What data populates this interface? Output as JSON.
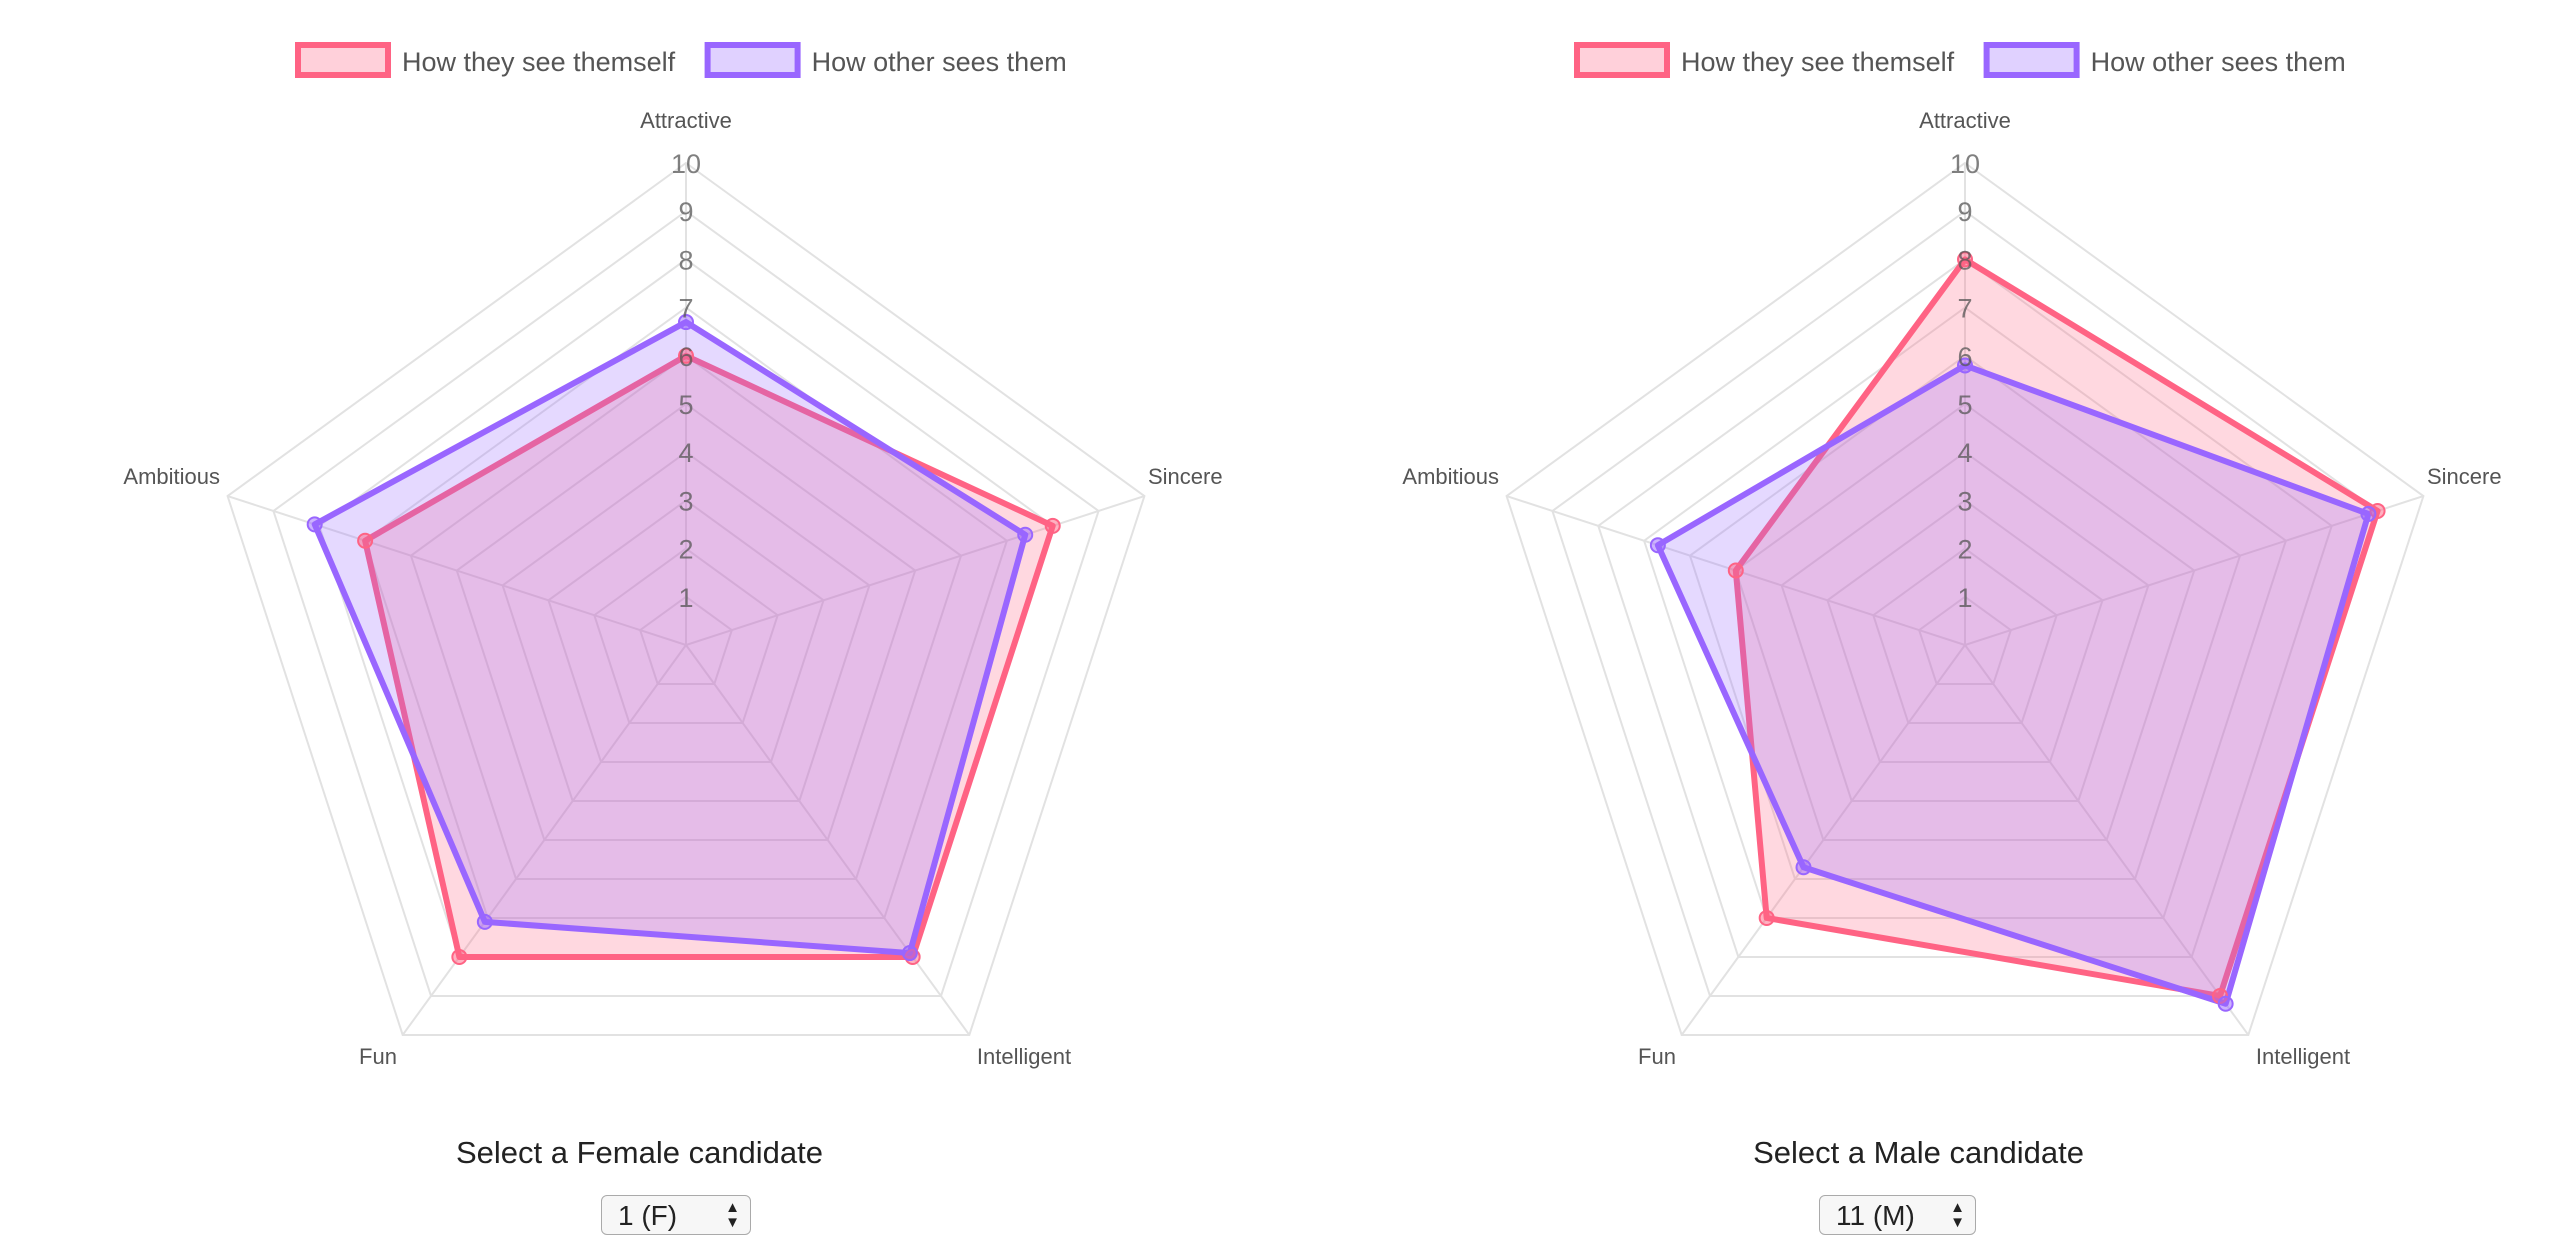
{
  "chart_data": [
    {
      "type": "radar",
      "axes": [
        "Attractive",
        "Sincere",
        "Intelligent",
        "Fun",
        "Ambitious"
      ],
      "ticks": [
        "1",
        "2",
        "3",
        "4",
        "5",
        "6",
        "7",
        "8",
        "9",
        "10"
      ],
      "rlim": [
        0,
        10
      ],
      "legend_position": "top",
      "series": [
        {
          "name": "How they see themself",
          "values": [
            6,
            8,
            8,
            8,
            7
          ],
          "color": "#ff6384"
        },
        {
          "name": "How other sees them",
          "values": [
            6.7,
            7.4,
            7.9,
            7.1,
            8.1
          ],
          "color": "#9966ff"
        }
      ]
    },
    {
      "type": "radar",
      "axes": [
        "Attractive",
        "Sincere",
        "Intelligent",
        "Fun",
        "Ambitious"
      ],
      "ticks": [
        "1",
        "2",
        "3",
        "4",
        "5",
        "6",
        "7",
        "8",
        "9",
        "10"
      ],
      "rlim": [
        0,
        10
      ],
      "legend_position": "top",
      "series": [
        {
          "name": "How they see themself",
          "values": [
            8,
            9,
            9,
            7,
            5
          ],
          "color": "#ff6384"
        },
        {
          "name": "How other sees them",
          "values": [
            5.8,
            8.8,
            9.2,
            5.7,
            6.7
          ],
          "color": "#9966ff"
        }
      ]
    }
  ],
  "controls": {
    "female_label": "Select a Female candidate",
    "female_value": "1 (F)",
    "male_label": "Select a Male candidate",
    "male_value": "11 (M)",
    "select_arrows_up": "▲",
    "select_arrows_down": "▼"
  }
}
